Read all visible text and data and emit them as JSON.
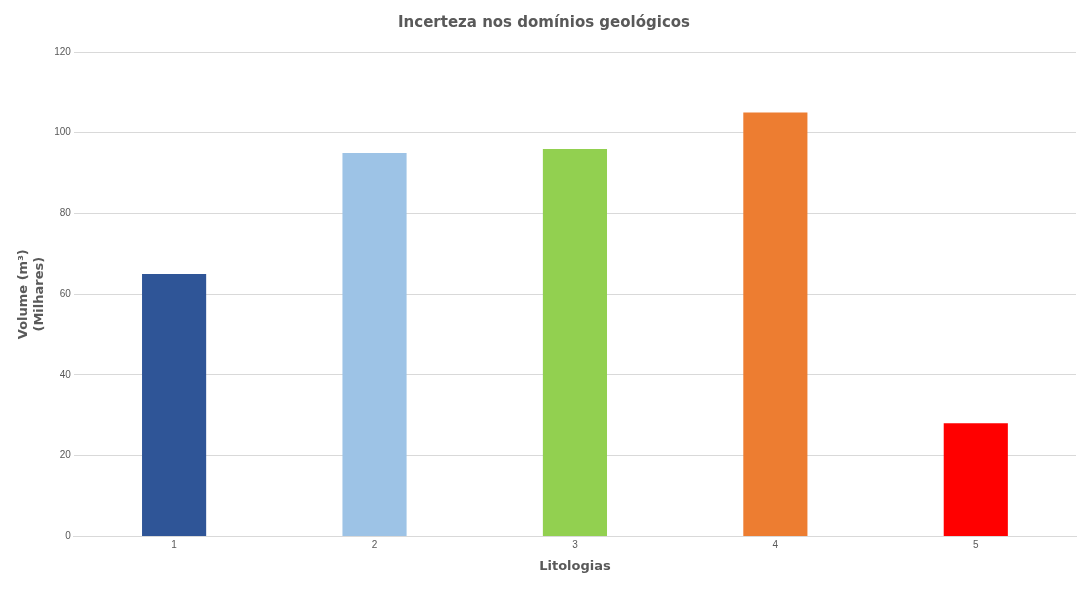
{
  "chart_data": {
    "type": "bar",
    "title": "Incerteza nos domínios geológicos",
    "xlabel": "Litologias",
    "ylabel": "Volume (m³)\n(Milhares)",
    "categories": [
      "1",
      "2",
      "3",
      "4",
      "5"
    ],
    "values": [
      65,
      95,
      96,
      105,
      28
    ],
    "colors": [
      "#2f5597",
      "#9dc3e6",
      "#92d050",
      "#ed7d31",
      "#ff0000"
    ],
    "ylim": [
      0,
      120
    ],
    "yticks": [
      0,
      20,
      40,
      60,
      80,
      100,
      120
    ],
    "grid": "y",
    "legend": false
  }
}
